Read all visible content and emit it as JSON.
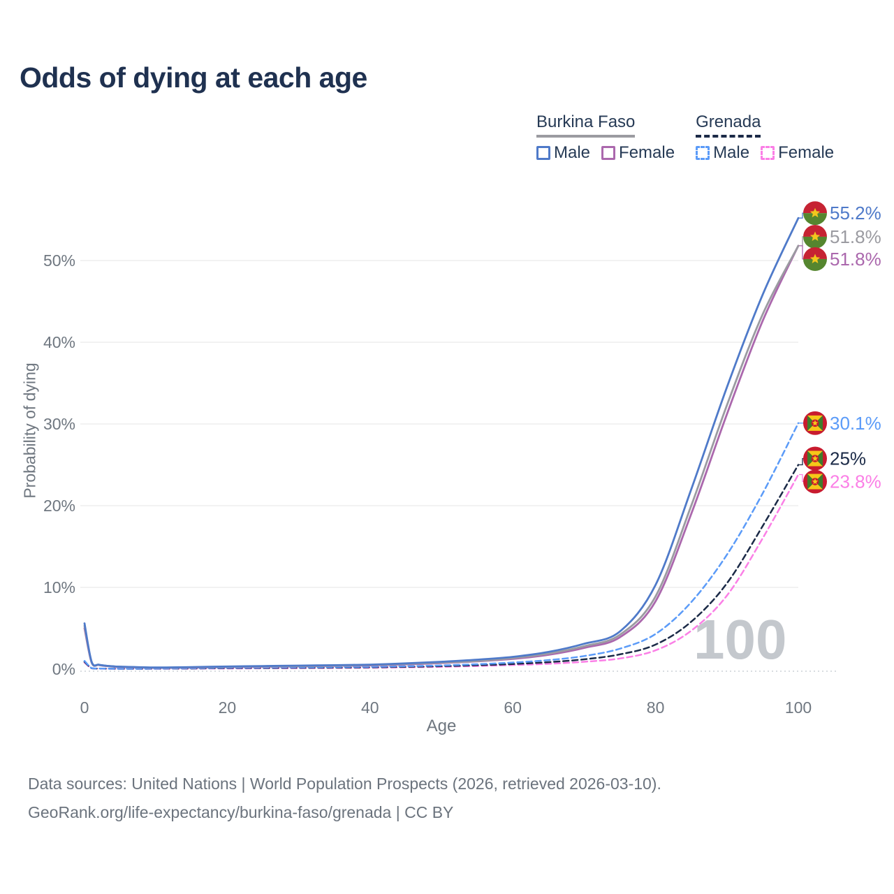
{
  "title": "Odds of dying at each age",
  "age_indicator": "100",
  "legend": {
    "groups": [
      {
        "name": "Burkina Faso",
        "line_style": "solid",
        "line_color": "#9b9ba1",
        "items": [
          {
            "label": "Male",
            "color": "#4f7ac9",
            "dashed": false
          },
          {
            "label": "Female",
            "color": "#ab68ad",
            "dashed": false
          }
        ]
      },
      {
        "name": "Grenada",
        "line_style": "dashed",
        "line_color": "#1b2a47",
        "items": [
          {
            "label": "Male",
            "color": "#5b9bf8",
            "dashed": true
          },
          {
            "label": "Female",
            "color": "#fb7fe6",
            "dashed": true
          }
        ]
      }
    ]
  },
  "footer": {
    "line1": "Data sources: United Nations | World Population Prospects (2026, retrieved 2026-03-10).",
    "line2": "GeoRank.org/life-expectancy/burkina-faso/grenada | CC BY"
  },
  "colors": {
    "title": "#1f3150",
    "axis_text": "#6f7780",
    "grid": "#ededed",
    "axis_line": "#ccd1d6",
    "watermark": "#c4c8cd",
    "legend_text": "#263a55",
    "footer_text": "#6b737d"
  },
  "chart_data": {
    "type": "line",
    "title": "Odds of dying at each age",
    "xlabel": "Age",
    "ylabel": "Probability of dying",
    "xlim": [
      0,
      100
    ],
    "ylim": [
      0,
      57
    ],
    "grid": true,
    "legend_position": "top-right",
    "x_ticks": [
      {
        "label": "0",
        "value": 0
      },
      {
        "label": "20",
        "value": 20
      },
      {
        "label": "40",
        "value": 40
      },
      {
        "label": "60",
        "value": 60
      },
      {
        "label": "80",
        "value": 80
      },
      {
        "label": "100",
        "value": 100
      }
    ],
    "y_ticks": [
      {
        "label": "0%",
        "value": 0
      },
      {
        "label": "10%",
        "value": 10
      },
      {
        "label": "20%",
        "value": 20
      },
      {
        "label": "30%",
        "value": 30
      },
      {
        "label": "40%",
        "value": 40
      },
      {
        "label": "50%",
        "value": 50
      }
    ],
    "x": [
      0,
      1,
      2,
      3,
      4,
      5,
      10,
      15,
      20,
      25,
      30,
      35,
      40,
      45,
      50,
      55,
      60,
      65,
      70,
      75,
      80,
      85,
      90,
      95,
      100
    ],
    "series": [
      {
        "name": "Burkina Faso Male",
        "country": "Burkina Faso",
        "sex": "Male",
        "flag": "burkina-faso",
        "color": "#4f7ac9",
        "dashed": false,
        "end_label": "55.2%",
        "final_value": 55.2,
        "values": [
          5.6,
          0.9,
          0.55,
          0.42,
          0.35,
          0.3,
          0.2,
          0.25,
          0.32,
          0.38,
          0.43,
          0.48,
          0.55,
          0.7,
          0.9,
          1.15,
          1.5,
          2.1,
          3.1,
          4.6,
          10.3,
          22,
          34.5,
          45.8,
          55.2
        ]
      },
      {
        "name": "Burkina Faso Both sexes",
        "country": "Burkina Faso",
        "sex": "Both",
        "flag": "burkina-faso",
        "color": "#9b9ba1",
        "dashed": false,
        "end_label": "51.8%",
        "final_value": 51.8,
        "values": [
          5.3,
          0.85,
          0.52,
          0.4,
          0.33,
          0.28,
          0.18,
          0.22,
          0.28,
          0.33,
          0.38,
          0.43,
          0.5,
          0.63,
          0.8,
          1.0,
          1.35,
          1.9,
          2.8,
          4.2,
          8.9,
          20,
          32.3,
          43.4,
          51.8
        ]
      },
      {
        "name": "Burkina Faso Female",
        "country": "Burkina Faso",
        "sex": "Female",
        "flag": "burkina-faso",
        "color": "#ab68ad",
        "dashed": false,
        "end_label": "51.8%",
        "final_value": 51.8,
        "values": [
          5.0,
          0.8,
          0.5,
          0.38,
          0.31,
          0.26,
          0.17,
          0.2,
          0.26,
          0.3,
          0.35,
          0.4,
          0.46,
          0.58,
          0.74,
          0.95,
          1.25,
          1.75,
          2.6,
          3.9,
          8.3,
          19,
          31.2,
          42.6,
          51.8
        ]
      },
      {
        "name": "Grenada Male",
        "country": "Grenada",
        "sex": "Male",
        "flag": "grenada",
        "color": "#5b9bf8",
        "dashed": true,
        "end_label": "30.1%",
        "final_value": 30.1,
        "values": [
          1.0,
          0.12,
          0.08,
          0.06,
          0.05,
          0.05,
          0.06,
          0.1,
          0.16,
          0.19,
          0.21,
          0.24,
          0.28,
          0.35,
          0.45,
          0.6,
          0.8,
          1.1,
          1.6,
          2.5,
          4.3,
          8.2,
          14,
          21.5,
          30.1
        ]
      },
      {
        "name": "Grenada Both sexes",
        "country": "Grenada",
        "sex": "Both",
        "flag": "grenada",
        "color": "#1b2a47",
        "dashed": true,
        "end_label": "25%",
        "final_value": 25,
        "values": [
          0.9,
          0.11,
          0.07,
          0.055,
          0.048,
          0.045,
          0.05,
          0.08,
          0.12,
          0.14,
          0.16,
          0.18,
          0.22,
          0.28,
          0.36,
          0.48,
          0.62,
          0.85,
          1.2,
          1.8,
          3.0,
          5.8,
          10.5,
          17.5,
          25
        ]
      },
      {
        "name": "Grenada Female",
        "country": "Grenada",
        "sex": "Female",
        "flag": "grenada",
        "color": "#fb7fe6",
        "dashed": true,
        "end_label": "23.8%",
        "final_value": 23.8,
        "values": [
          0.8,
          0.1,
          0.06,
          0.05,
          0.042,
          0.04,
          0.04,
          0.06,
          0.08,
          0.1,
          0.12,
          0.14,
          0.17,
          0.22,
          0.28,
          0.38,
          0.5,
          0.65,
          0.9,
          1.3,
          2.3,
          4.7,
          9.0,
          16.0,
          23.8
        ]
      }
    ]
  }
}
